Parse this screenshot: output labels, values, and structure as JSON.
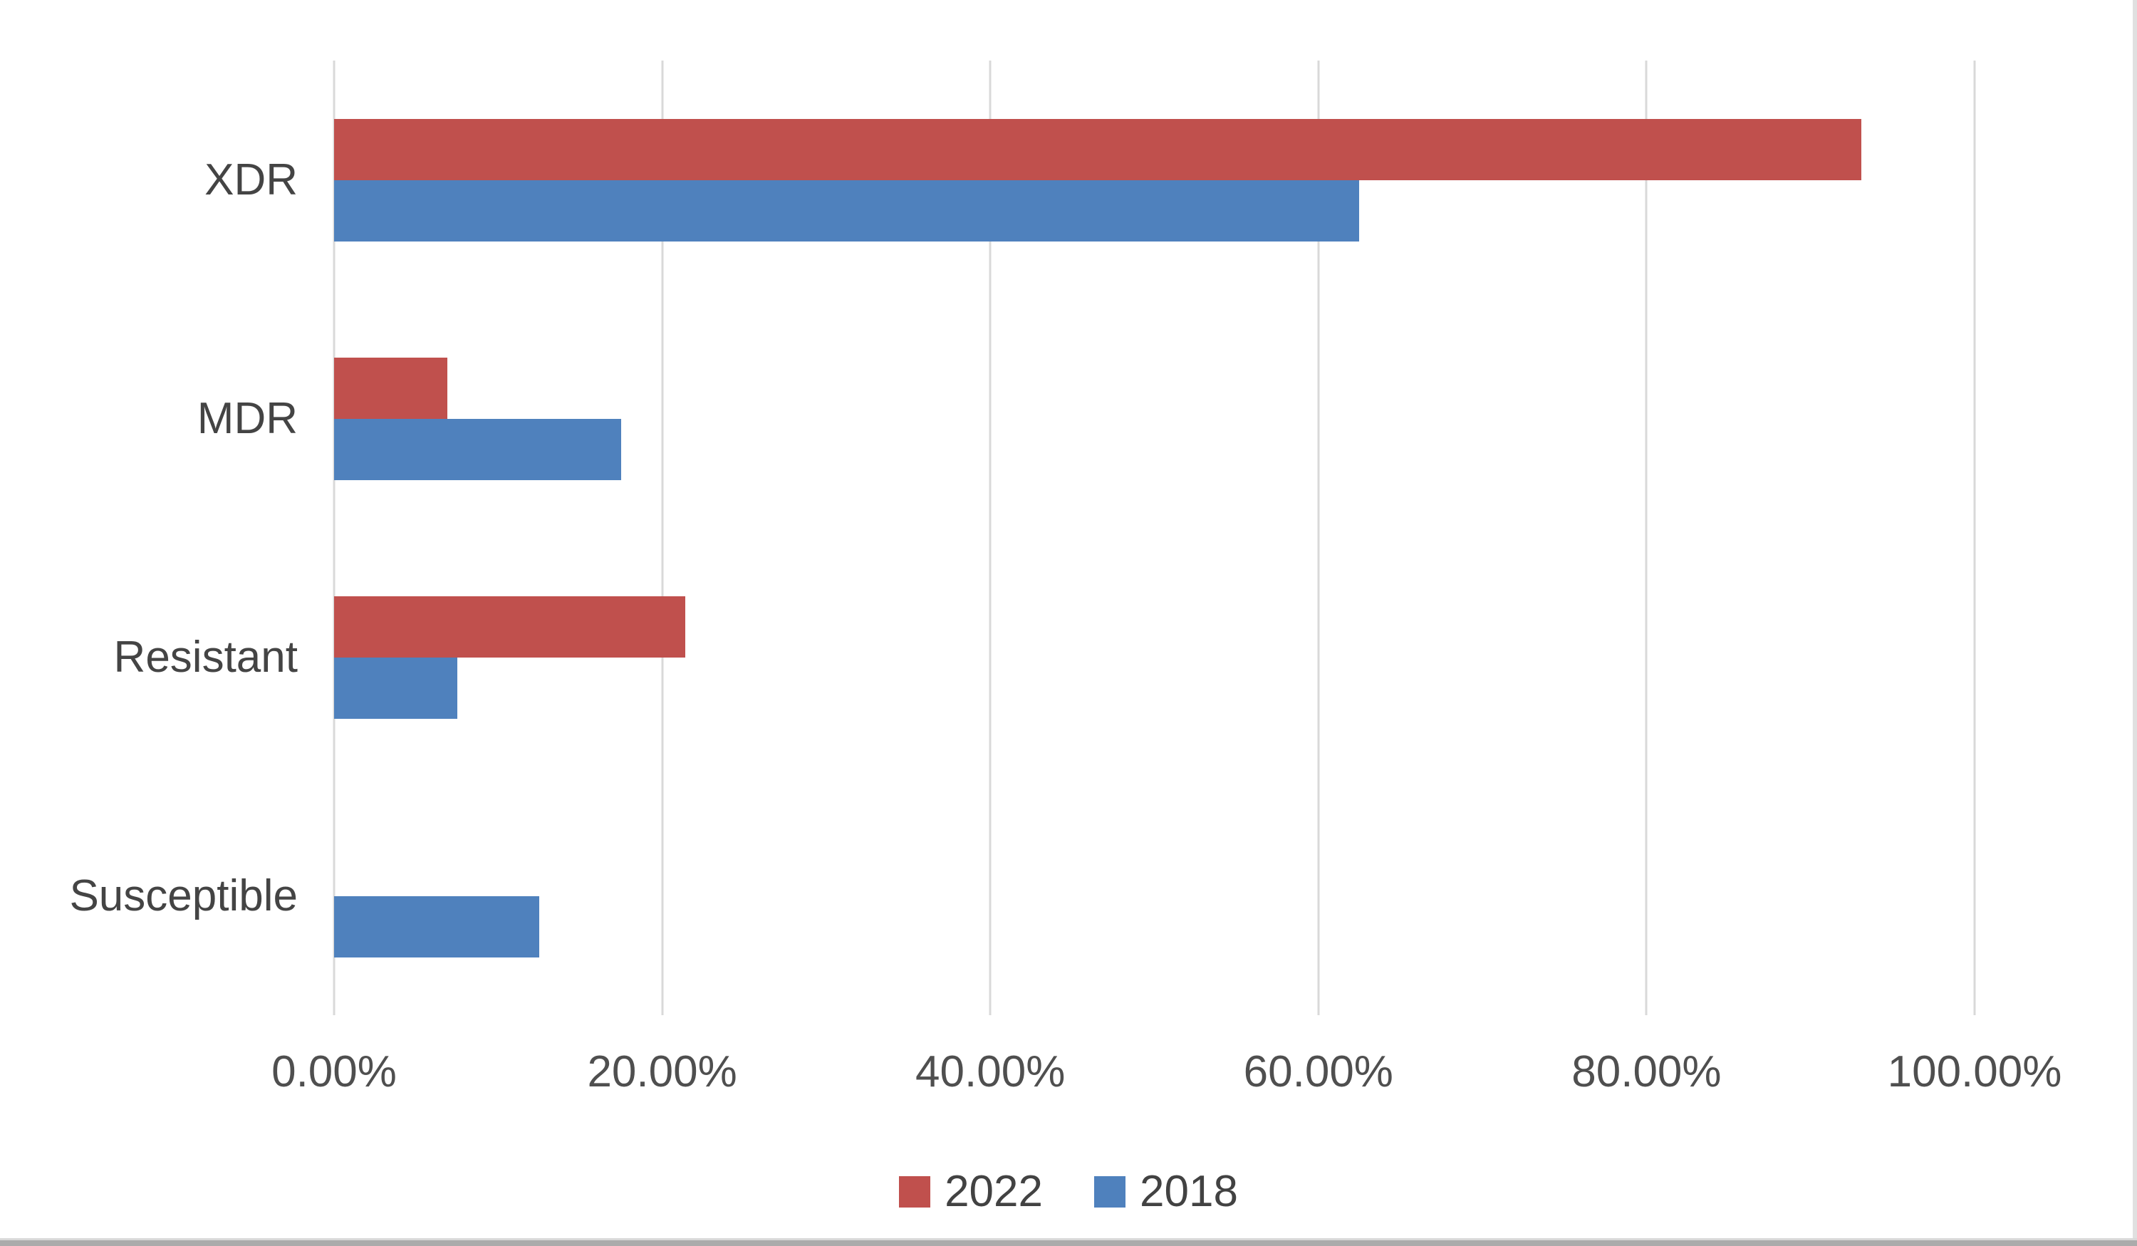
{
  "chart_data": {
    "type": "bar",
    "orientation": "horizontal",
    "title": "",
    "categories": [
      "XDR",
      "MDR",
      "Resistant",
      "Susceptible"
    ],
    "series": [
      {
        "name": "2022",
        "color": "#C0504D",
        "values": [
          93.1,
          6.9,
          21.4,
          0
        ]
      },
      {
        "name": "2018",
        "color": "#4F81BD",
        "values": [
          62.5,
          17.5,
          7.5,
          12.5
        ]
      }
    ],
    "x_axis": {
      "ticks": [
        "0.00%",
        "20.00%",
        "40.00%",
        "60.00%",
        "80.00%",
        "100.00%"
      ],
      "min": 0,
      "max": 100,
      "step": 20,
      "unit": "%"
    },
    "legend": {
      "position": "bottom",
      "entries": [
        "2022",
        "2018"
      ]
    },
    "grid": "vertical",
    "gridline_color": "#D9D9D9",
    "plot_background": "#FFFFFF",
    "text_color": "#444444"
  },
  "window": {
    "edge_right_color": "#E0E0E0",
    "edge_bottom_color": "#ABABAB"
  }
}
